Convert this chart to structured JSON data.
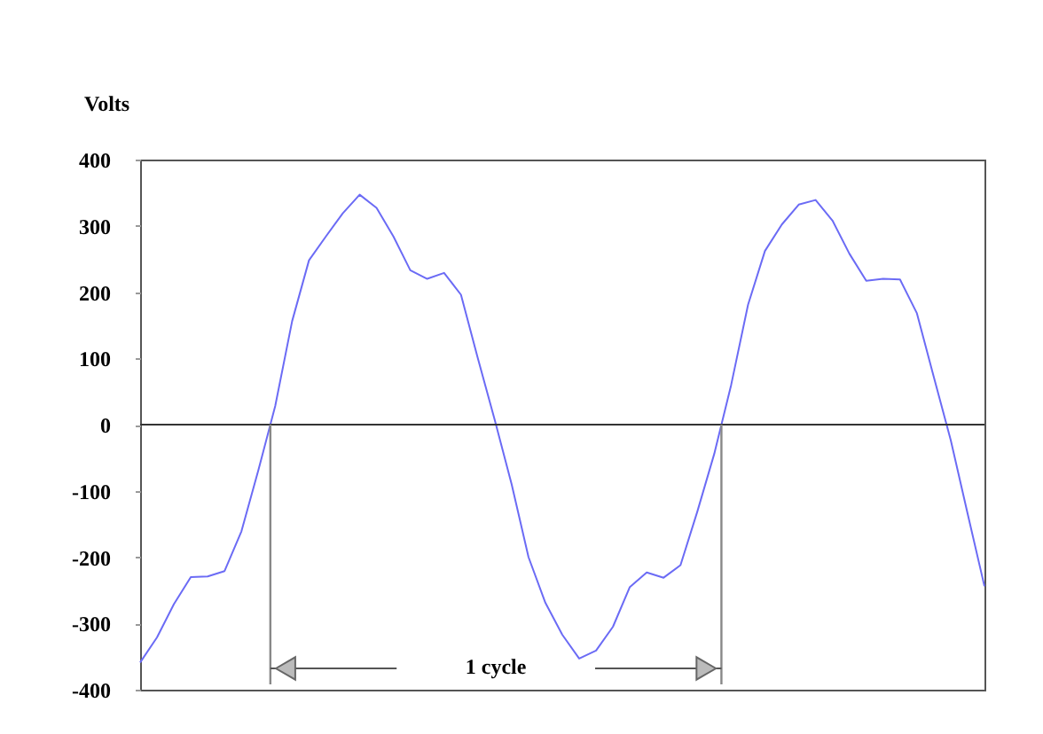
{
  "chart_data": {
    "type": "line",
    "ylabel": "Volts",
    "categories": [
      null,
      null,
      null,
      null,
      null,
      null,
      null,
      null,
      null,
      null,
      null,
      null,
      null,
      null,
      null,
      null,
      null,
      null,
      null,
      null,
      null,
      null,
      null,
      null,
      null,
      null,
      null,
      null,
      null,
      null,
      null,
      null,
      null,
      null,
      null,
      null,
      null,
      null,
      null,
      null,
      null,
      null,
      null,
      null,
      null,
      null,
      null,
      null,
      null,
      null,
      null
    ],
    "series": [
      {
        "color": "#6b6bf5",
        "values": [
          -359,
          -321,
          -271,
          -230,
          -229,
          -221,
          -161,
          -69,
          28,
          156,
          248,
          284,
          319,
          347,
          327,
          284,
          233,
          220,
          229,
          196,
          100,
          7,
          -90,
          -200,
          -269,
          -317,
          -353,
          -341,
          -305,
          -245,
          -223,
          -231,
          -212,
          -131,
          -44,
          60,
          181,
          262,
          302,
          332,
          339,
          308,
          258,
          217,
          220,
          219,
          168,
          72,
          -23,
          -134,
          -244
        ]
      }
    ],
    "ylim": [
      -400,
      400
    ],
    "yticks": [
      -400,
      -300,
      -200,
      -100,
      0,
      100,
      200,
      300,
      400
    ],
    "ref_lines": [
      {
        "axis": "y",
        "value": 0,
        "color": "#333333"
      }
    ],
    "annotations": [
      "1 cycle"
    ],
    "tick_labels": "y",
    "grid": false,
    "legend": false,
    "marker": "none",
    "line_style": "solid"
  }
}
